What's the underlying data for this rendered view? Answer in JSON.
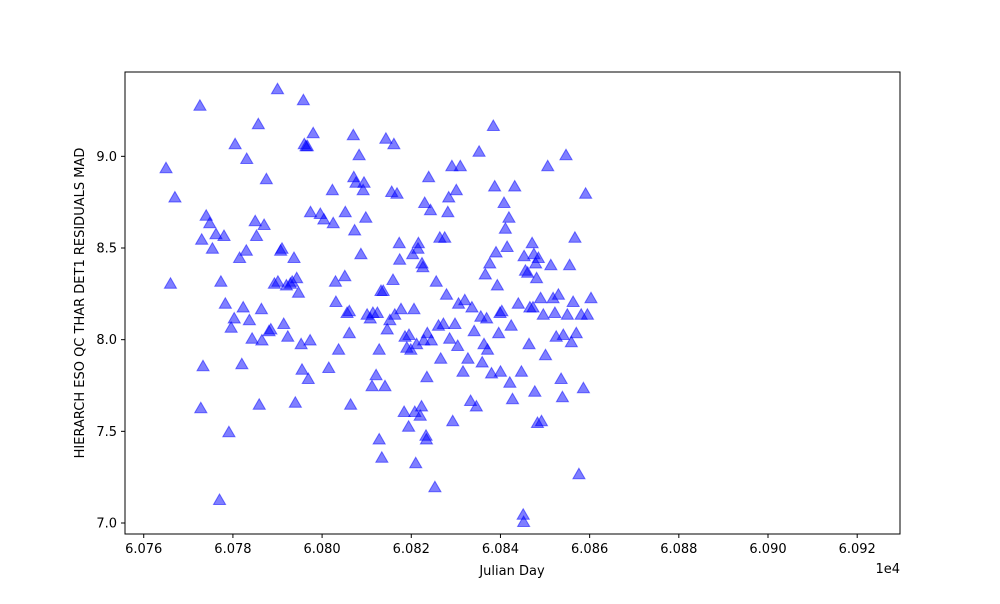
{
  "chart_data": {
    "type": "scatter",
    "xlabel": "Julian Day",
    "ylabel": "HIERARCH ESO QC THAR DET1 RESIDUALS MAD",
    "x_offset_label": "1e4",
    "x_ticks": [
      "6.076",
      "6.078",
      "6.080",
      "6.082",
      "6.084",
      "6.086",
      "6.088",
      "6.090",
      "6.092"
    ],
    "y_ticks": [
      "7.0",
      "7.5",
      "8.0",
      "8.5",
      "9.0"
    ],
    "xlim": [
      60755.8,
      60929.6
    ],
    "ylim": [
      6.94,
      9.46
    ],
    "grid": false,
    "marker": "triangle-up",
    "marker_color": "#0000ff",
    "marker_alpha": 0.5,
    "points": [
      [
        60765.0,
        8.93
      ],
      [
        60766.0,
        8.3
      ],
      [
        60767.0,
        8.77
      ],
      [
        60772.6,
        9.27
      ],
      [
        60772.8,
        7.62
      ],
      [
        60773.0,
        8.54
      ],
      [
        60773.3,
        7.85
      ],
      [
        60774.0,
        8.67
      ],
      [
        60774.8,
        8.63
      ],
      [
        60775.4,
        8.49
      ],
      [
        60776.2,
        8.57
      ],
      [
        60777.3,
        8.31
      ],
      [
        60777.0,
        7.12
      ],
      [
        60778.0,
        8.56
      ],
      [
        60778.3,
        8.19
      ],
      [
        60779.1,
        7.49
      ],
      [
        60779.6,
        8.06
      ],
      [
        60780.3,
        8.11
      ],
      [
        60780.5,
        9.06
      ],
      [
        60781.5,
        8.44
      ],
      [
        60782.0,
        7.86
      ],
      [
        60782.3,
        8.17
      ],
      [
        60783.0,
        8.48
      ],
      [
        60783.1,
        8.98
      ],
      [
        60783.7,
        8.1
      ],
      [
        60784.3,
        8.0
      ],
      [
        60785.0,
        8.64
      ],
      [
        60785.3,
        8.56
      ],
      [
        60785.7,
        9.17
      ],
      [
        60785.9,
        7.64
      ],
      [
        60786.4,
        8.16
      ],
      [
        60786.5,
        7.99
      ],
      [
        60787.0,
        8.62
      ],
      [
        60787.5,
        8.87
      ],
      [
        60788.1,
        8.04
      ],
      [
        60788.5,
        8.05
      ],
      [
        60789.3,
        8.3
      ],
      [
        60790.0,
        9.36
      ],
      [
        60790.1,
        8.31
      ],
      [
        60790.7,
        8.48
      ],
      [
        60791.0,
        8.49
      ],
      [
        60791.4,
        8.08
      ],
      [
        60792.0,
        8.29
      ],
      [
        60792.3,
        8.01
      ],
      [
        60792.9,
        8.3
      ],
      [
        60793.3,
        8.31
      ],
      [
        60793.7,
        8.44
      ],
      [
        60794.0,
        7.65
      ],
      [
        60794.3,
        8.33
      ],
      [
        60794.7,
        8.25
      ],
      [
        60795.3,
        7.97
      ],
      [
        60795.5,
        7.83
      ],
      [
        60795.8,
        9.3
      ],
      [
        60796.0,
        9.06
      ],
      [
        60796.4,
        9.05
      ],
      [
        60796.7,
        9.05
      ],
      [
        60796.9,
        7.78
      ],
      [
        60797.3,
        7.99
      ],
      [
        60797.4,
        8.69
      ],
      [
        60798.0,
        9.12
      ],
      [
        60799.6,
        8.68
      ],
      [
        60800.4,
        8.65
      ],
      [
        60801.5,
        7.84
      ],
      [
        60802.3,
        8.81
      ],
      [
        60802.5,
        8.63
      ],
      [
        60803.0,
        8.31
      ],
      [
        60803.1,
        8.2
      ],
      [
        60803.7,
        7.94
      ],
      [
        60805.1,
        8.34
      ],
      [
        60805.2,
        8.69
      ],
      [
        60805.6,
        8.14
      ],
      [
        60806.1,
        8.15
      ],
      [
        60806.1,
        8.03
      ],
      [
        60806.4,
        7.64
      ],
      [
        60807.0,
        9.11
      ],
      [
        60807.1,
        8.88
      ],
      [
        60807.3,
        8.59
      ],
      [
        60807.6,
        8.85
      ],
      [
        60808.3,
        9.0
      ],
      [
        60808.7,
        8.46
      ],
      [
        60809.2,
        8.81
      ],
      [
        60809.4,
        8.85
      ],
      [
        60809.8,
        8.66
      ],
      [
        60810.1,
        8.13
      ],
      [
        60810.8,
        8.11
      ],
      [
        60811.2,
        7.74
      ],
      [
        60811.4,
        8.14
      ],
      [
        60812.1,
        7.8
      ],
      [
        60812.4,
        8.14
      ],
      [
        60812.8,
        7.45
      ],
      [
        60812.8,
        7.94
      ],
      [
        60813.2,
        8.26
      ],
      [
        60813.4,
        7.35
      ],
      [
        60813.7,
        8.26
      ],
      [
        60814.1,
        7.74
      ],
      [
        60814.3,
        9.09
      ],
      [
        60814.6,
        8.05
      ],
      [
        60815.2,
        8.1
      ],
      [
        60815.9,
        8.32
      ],
      [
        60815.6,
        8.8
      ],
      [
        60816.1,
        9.06
      ],
      [
        60816.3,
        8.13
      ],
      [
        60816.8,
        8.79
      ],
      [
        60817.3,
        8.52
      ],
      [
        60817.4,
        8.43
      ],
      [
        60817.7,
        8.16
      ],
      [
        60818.4,
        7.6
      ],
      [
        60818.6,
        8.01
      ],
      [
        60819.0,
        7.95
      ],
      [
        60819.4,
        7.52
      ],
      [
        60819.5,
        8.02
      ],
      [
        60819.9,
        7.94
      ],
      [
        60820.3,
        8.46
      ],
      [
        60820.6,
        8.16
      ],
      [
        60820.8,
        7.6
      ],
      [
        60821.0,
        7.32
      ],
      [
        60821.2,
        7.97
      ],
      [
        60821.5,
        8.49
      ],
      [
        60821.6,
        8.52
      ],
      [
        60822.0,
        7.58
      ],
      [
        60822.3,
        7.63
      ],
      [
        60822.4,
        8.41
      ],
      [
        60822.6,
        8.39
      ],
      [
        60822.8,
        7.99
      ],
      [
        60823.0,
        8.74
      ],
      [
        60823.3,
        7.47
      ],
      [
        60823.4,
        7.45
      ],
      [
        60823.5,
        7.79
      ],
      [
        60823.6,
        8.03
      ],
      [
        60823.9,
        8.88
      ],
      [
        60824.3,
        8.7
      ],
      [
        60824.5,
        7.99
      ],
      [
        60825.3,
        7.19
      ],
      [
        60825.6,
        8.31
      ],
      [
        60826.1,
        8.07
      ],
      [
        60826.4,
        8.55
      ],
      [
        60826.6,
        7.89
      ],
      [
        60827.2,
        8.08
      ],
      [
        60827.5,
        8.55
      ],
      [
        60827.9,
        8.24
      ],
      [
        60828.2,
        8.69
      ],
      [
        60828.4,
        8.77
      ],
      [
        60828.6,
        8.0
      ],
      [
        60829.1,
        8.94
      ],
      [
        60829.3,
        7.55
      ],
      [
        60829.8,
        8.08
      ],
      [
        60830.1,
        8.81
      ],
      [
        60830.4,
        7.96
      ],
      [
        60830.6,
        8.19
      ],
      [
        60831.0,
        8.94
      ],
      [
        60831.6,
        7.82
      ],
      [
        60832.0,
        8.21
      ],
      [
        60832.7,
        7.89
      ],
      [
        60833.3,
        7.66
      ],
      [
        60833.6,
        8.17
      ],
      [
        60834.1,
        8.04
      ],
      [
        60834.6,
        7.63
      ],
      [
        60835.2,
        9.02
      ],
      [
        60835.6,
        8.12
      ],
      [
        60835.9,
        7.87
      ],
      [
        60836.3,
        7.97
      ],
      [
        60836.6,
        8.35
      ],
      [
        60836.9,
        8.11
      ],
      [
        60837.1,
        7.94
      ],
      [
        60837.6,
        8.41
      ],
      [
        60838.0,
        7.81
      ],
      [
        60838.4,
        9.16
      ],
      [
        60838.7,
        8.83
      ],
      [
        60839.0,
        8.47
      ],
      [
        60839.3,
        8.29
      ],
      [
        60839.6,
        8.03
      ],
      [
        60839.9,
        8.14
      ],
      [
        60840.0,
        7.82
      ],
      [
        60840.3,
        8.15
      ],
      [
        60840.8,
        8.74
      ],
      [
        60841.1,
        8.6
      ],
      [
        60841.5,
        8.5
      ],
      [
        60841.9,
        8.66
      ],
      [
        60842.1,
        7.76
      ],
      [
        60842.4,
        8.07
      ],
      [
        60842.7,
        7.67
      ],
      [
        60843.2,
        8.83
      ],
      [
        60844.0,
        8.19
      ],
      [
        60844.7,
        7.82
      ],
      [
        60845.1,
        7.04
      ],
      [
        60845.2,
        7.0
      ],
      [
        60845.3,
        8.45
      ],
      [
        60845.6,
        8.37
      ],
      [
        60846.1,
        8.36
      ],
      [
        60846.4,
        7.97
      ],
      [
        60846.6,
        8.17
      ],
      [
        60847.1,
        8.52
      ],
      [
        60847.3,
        8.17
      ],
      [
        60847.5,
        8.46
      ],
      [
        60847.7,
        7.71
      ],
      [
        60847.9,
        8.41
      ],
      [
        60848.1,
        8.33
      ],
      [
        60848.3,
        7.54
      ],
      [
        60848.5,
        8.44
      ],
      [
        60849.0,
        8.22
      ],
      [
        60849.2,
        7.55
      ],
      [
        60849.6,
        8.13
      ],
      [
        60850.1,
        7.91
      ],
      [
        60850.6,
        8.94
      ],
      [
        60851.3,
        8.4
      ],
      [
        60851.8,
        8.22
      ],
      [
        60852.2,
        8.14
      ],
      [
        60852.5,
        8.01
      ],
      [
        60853.0,
        8.24
      ],
      [
        60853.6,
        7.78
      ],
      [
        60853.9,
        7.68
      ],
      [
        60854.1,
        8.02
      ],
      [
        60854.7,
        9.0
      ],
      [
        60855.0,
        8.13
      ],
      [
        60855.5,
        8.4
      ],
      [
        60855.9,
        7.98
      ],
      [
        60856.3,
        8.2
      ],
      [
        60856.7,
        8.55
      ],
      [
        60857.0,
        8.03
      ],
      [
        60857.6,
        7.26
      ],
      [
        60858.1,
        8.13
      ],
      [
        60858.6,
        7.73
      ],
      [
        60859.1,
        8.79
      ],
      [
        60859.5,
        8.13
      ],
      [
        60860.3,
        8.22
      ]
    ]
  }
}
